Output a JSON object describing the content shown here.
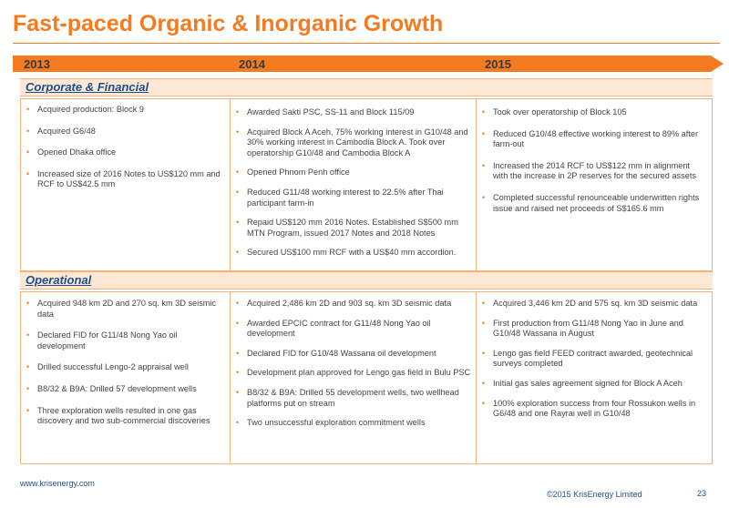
{
  "title": "Fast-paced Organic & Inorganic Growth",
  "years": [
    "2013",
    "2014",
    "2015"
  ],
  "sections": {
    "corporate": {
      "label": "Corporate & Financial",
      "col2013": [
        "Acquired production: Block 9",
        "Acquired G6/48",
        "Opened Dhaka office",
        "Increased size of 2016 Notes to US$120 mm and RCF to US$42.5 mm"
      ],
      "col2014": [
        "Awarded Sakti PSC, SS-11 and Block 115/09",
        "Acquired Block A Aceh, 75% working interest in G10/48 and 30% working interest in Cambodia Block A. Took over operatorship G10/48 and Cambodia Block A",
        "Opened Phnom Penh office",
        "Reduced G11/48 working interest to 22.5% after Thai participant farm-in",
        "Repaid US$120 mm 2016 Notes. Established S$500 mm MTN Program, issued 2017 Notes and 2018 Notes",
        "Secured US$100 mm RCF with a US$40 mm accordion."
      ],
      "col2015": [
        "Took over operatorship of Block 105",
        "Reduced G10/48 effective working interest to 89% after farm-out",
        "Increased the 2014 RCF to US$122 mm in alignment with the increase in 2P reserves for the secured assets",
        "Completed successful renounceable underwritten rights issue and raised net proceeds of S$165.6 mm"
      ]
    },
    "operational": {
      "label": "Operational",
      "col2013": [
        "Acquired 948 km 2D and 270 sq. km 3D seismic data",
        "Declared FID for G11/48 Nong Yao oil development",
        "Drilled successful Lengo-2 appraisal well",
        "B8/32 & B9A: Drilled 57 development wells",
        "Three exploration wells resulted in one gas discovery and two sub-commercial discoveries"
      ],
      "col2014": [
        "Acquired 2,486 km 2D and 903 sq. km 3D seismic data",
        "Awarded EPCIC contract for G11/48 Nong Yao oil development",
        "Declared FID for G10/48 Wassana oil development",
        "Development plan approved for Lengo gas field in Bulu PSC",
        "B8/32 & B9A: Drilled 55 development wells, two wellhead platforms put on stream",
        "Two unsuccessful exploration commitment wells"
      ],
      "col2015": [
        "Acquired 3,446 km 2D and 575 sq. km 3D seismic data",
        "First production from G11/48 Nong Yao in June and G10/48 Wassana in August",
        "Lengo gas field FEED contract awarded, geotechnical surveys completed",
        "Initial gas sales agreement signed for Block A Aceh",
        "100% exploration success from four Rossukon wells in G6/48 and one Rayrai well in G10/48"
      ]
    }
  },
  "footer": {
    "url": "www.krisenergy.com",
    "copyright": "©2015 KrisEnergy Limited",
    "page": "23"
  },
  "colors": {
    "accent": "#f47b20",
    "section_fill": "#fde8d6",
    "section_text": "#1f4e8c"
  }
}
